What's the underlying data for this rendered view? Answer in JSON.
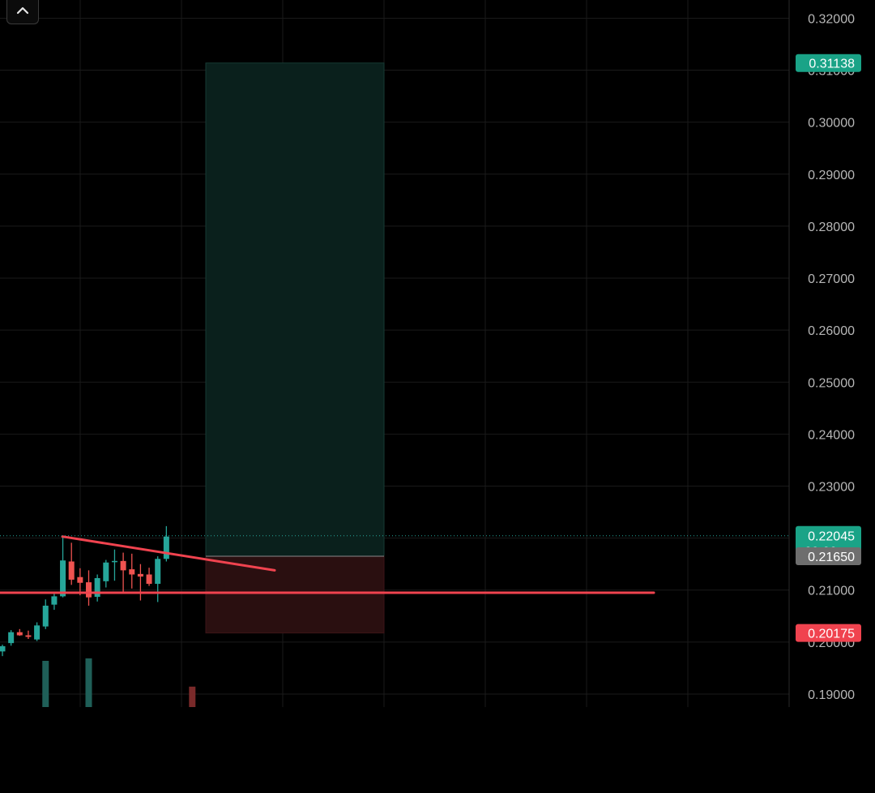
{
  "ui": {
    "collapse_icon": "chevron-up-icon"
  },
  "colors": {
    "background": "#000000",
    "grid": "#1a1a1a",
    "axis_text": "#b7b7b7",
    "up": "#26a69a",
    "down": "#ef5350",
    "target_zone": "#0a201c",
    "stop_zone": "#2a0f10",
    "trendline": "#f0434f",
    "tag_up": "#1aa387",
    "tag_down": "#f0434f",
    "tag_gray": "#6e6e6e"
  },
  "chart_data": {
    "type": "candlestick",
    "ylim": [
      0.1875,
      0.3235
    ],
    "y_ticks": [
      "0.32000",
      "0.31000",
      "0.30000",
      "0.29000",
      "0.28000",
      "0.27000",
      "0.26000",
      "0.25000",
      "0.24000",
      "0.23000",
      "0.21000",
      "0.20000",
      "0.19000"
    ],
    "candles": [
      {
        "o": 0.1982,
        "h": 0.1995,
        "l": 0.1973,
        "c": 0.1992
      },
      {
        "o": 0.1998,
        "h": 0.2023,
        "l": 0.1993,
        "c": 0.2019
      },
      {
        "o": 0.2019,
        "h": 0.2025,
        "l": 0.2012,
        "c": 0.2013
      },
      {
        "o": 0.2013,
        "h": 0.2022,
        "l": 0.2006,
        "c": 0.201
      },
      {
        "o": 0.2005,
        "h": 0.2038,
        "l": 0.2002,
        "c": 0.2032
      },
      {
        "o": 0.203,
        "h": 0.2082,
        "l": 0.2025,
        "c": 0.207
      },
      {
        "o": 0.2072,
        "h": 0.2096,
        "l": 0.2062,
        "c": 0.2088
      },
      {
        "o": 0.2088,
        "h": 0.2203,
        "l": 0.2086,
        "c": 0.2157
      },
      {
        "o": 0.2155,
        "h": 0.2191,
        "l": 0.211,
        "c": 0.212
      },
      {
        "o": 0.2125,
        "h": 0.2142,
        "l": 0.209,
        "c": 0.2114
      },
      {
        "o": 0.2115,
        "h": 0.2138,
        "l": 0.207,
        "c": 0.2086
      },
      {
        "o": 0.2087,
        "h": 0.213,
        "l": 0.2078,
        "c": 0.2123
      },
      {
        "o": 0.2117,
        "h": 0.2158,
        "l": 0.2105,
        "c": 0.2153
      },
      {
        "o": 0.2155,
        "h": 0.2178,
        "l": 0.2118,
        "c": 0.2156
      },
      {
        "o": 0.2156,
        "h": 0.2172,
        "l": 0.2096,
        "c": 0.2138
      },
      {
        "o": 0.214,
        "h": 0.217,
        "l": 0.2103,
        "c": 0.213
      },
      {
        "o": 0.2131,
        "h": 0.215,
        "l": 0.208,
        "c": 0.2126
      },
      {
        "o": 0.213,
        "h": 0.2143,
        "l": 0.2108,
        "c": 0.2112
      },
      {
        "o": 0.2112,
        "h": 0.2165,
        "l": 0.2077,
        "c": 0.216
      },
      {
        "o": 0.216,
        "h": 0.2223,
        "l": 0.2155,
        "c": 0.2203
      }
    ],
    "volume": [
      {
        "index": 5,
        "value": 0.95,
        "direction": "up"
      },
      {
        "index": 10,
        "value": 1.0,
        "direction": "up"
      },
      {
        "index": 22,
        "value": 0.42,
        "direction": "down"
      }
    ],
    "position": {
      "entry": 0.2165,
      "target": 0.31138,
      "stop": 0.20175
    },
    "horizontal_line": 0.2095,
    "trendline": {
      "from": 0.2203,
      "to": 0.2138
    },
    "current_price_line": 0.22045,
    "price_tags": [
      {
        "label": "0.31138",
        "value": 0.31138,
        "kind": "up"
      },
      {
        "label": "0.22045",
        "sublabel": "29:20",
        "value": 0.22045,
        "kind": "up"
      },
      {
        "label": "0.21650",
        "value": 0.2165,
        "kind": "gray"
      },
      {
        "label": "0.20175",
        "value": 0.20175,
        "kind": "down"
      }
    ]
  }
}
